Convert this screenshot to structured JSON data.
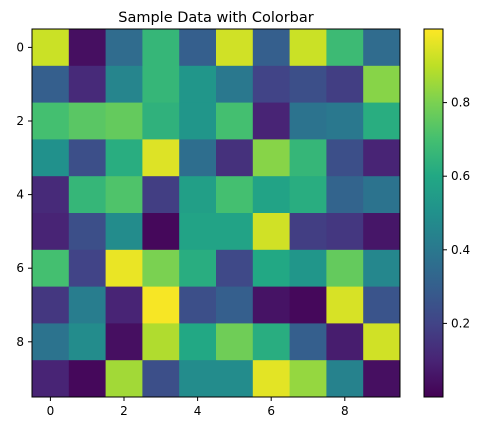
{
  "chart_data": {
    "type": "heatmap",
    "title": "Sample Data with Colorbar",
    "xlabel": "",
    "ylabel": "",
    "colormap": "viridis",
    "rows": 10,
    "cols": 10,
    "xlim": [
      -0.5,
      9.5
    ],
    "ylim": [
      9.5,
      -0.5
    ],
    "x_ticks": [
      0,
      2,
      4,
      6,
      8
    ],
    "x_tick_labels": [
      "0",
      "2",
      "4",
      "6",
      "8"
    ],
    "y_ticks": [
      0,
      2,
      4,
      6,
      8
    ],
    "y_tick_labels": [
      "0",
      "2",
      "4",
      "6",
      "8"
    ],
    "values": [
      [
        0.92,
        0.04,
        0.35,
        0.66,
        0.3,
        0.93,
        0.3,
        0.92,
        0.68,
        0.35
      ],
      [
        0.3,
        0.12,
        0.45,
        0.66,
        0.52,
        0.4,
        0.2,
        0.24,
        0.18,
        0.82
      ],
      [
        0.7,
        0.74,
        0.76,
        0.64,
        0.52,
        0.7,
        0.1,
        0.38,
        0.4,
        0.62
      ],
      [
        0.5,
        0.24,
        0.62,
        0.95,
        0.36,
        0.14,
        0.82,
        0.66,
        0.24,
        0.1
      ],
      [
        0.12,
        0.66,
        0.72,
        0.18,
        0.56,
        0.7,
        0.58,
        0.62,
        0.32,
        0.38
      ],
      [
        0.1,
        0.24,
        0.48,
        0.02,
        0.58,
        0.58,
        0.93,
        0.18,
        0.16,
        0.06
      ],
      [
        0.7,
        0.2,
        0.97,
        0.8,
        0.62,
        0.22,
        0.6,
        0.52,
        0.76,
        0.46
      ],
      [
        0.16,
        0.42,
        0.1,
        0.99,
        0.24,
        0.3,
        0.05,
        0.02,
        0.94,
        0.26
      ],
      [
        0.38,
        0.48,
        0.04,
        0.88,
        0.6,
        0.78,
        0.62,
        0.3,
        0.08,
        0.93
      ],
      [
        0.1,
        0.02,
        0.86,
        0.24,
        0.48,
        0.48,
        0.96,
        0.84,
        0.44,
        0.04
      ]
    ],
    "colorbar": {
      "vmin": 0.0,
      "vmax": 1.0,
      "ticks": [
        0.2,
        0.4,
        0.6,
        0.8
      ],
      "tick_labels": [
        "0.2",
        "0.4",
        "0.6",
        "0.8"
      ]
    }
  }
}
